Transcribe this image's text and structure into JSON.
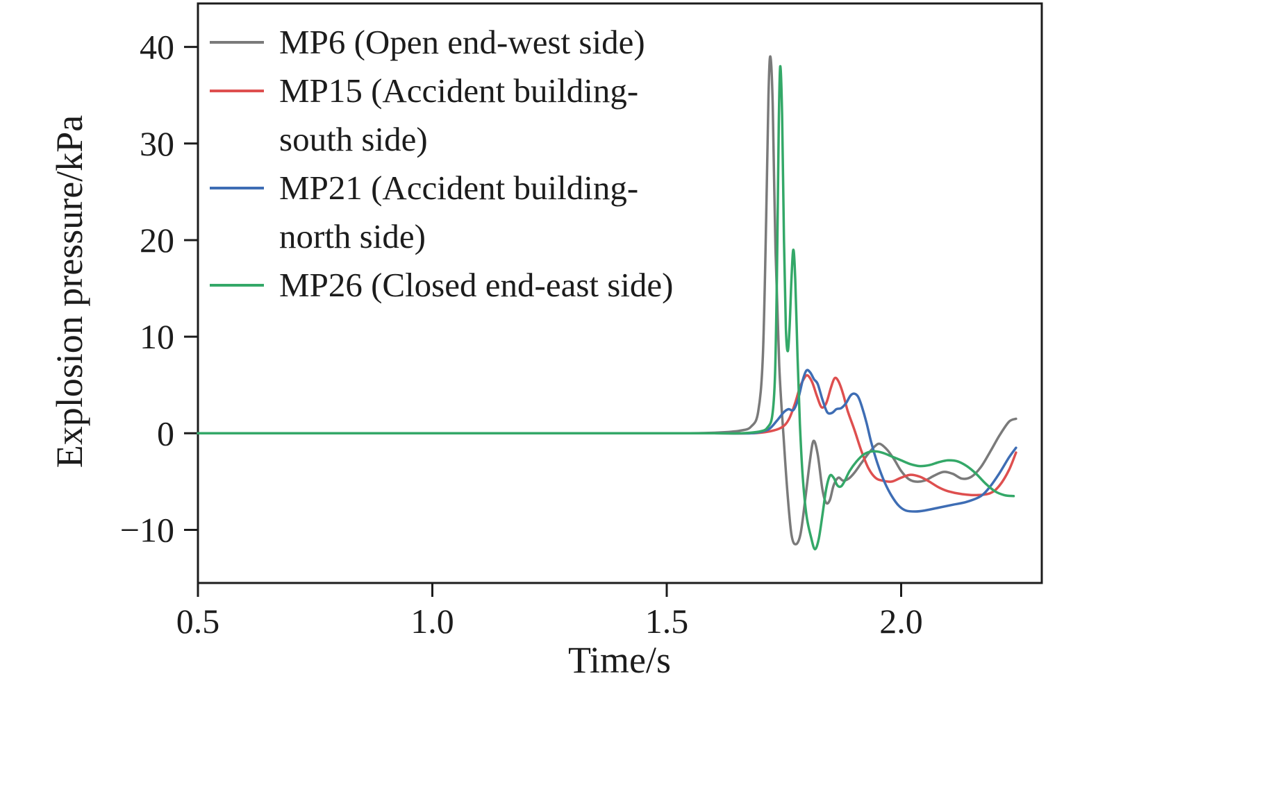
{
  "figure": {
    "background": "#ffffff",
    "frame_color": "#1c1c1c",
    "text_color": "#1c1c1c"
  },
  "chart_data": {
    "type": "line",
    "title": "",
    "xlabel": "Time/s",
    "ylabel": "Explosion pressure/kPa",
    "xlim": [
      0.5,
      2.3
    ],
    "ylim": [
      -15.5,
      44.5
    ],
    "xticks": [
      0.5,
      1.0,
      1.5,
      2.0
    ],
    "xtick_labels": [
      "0.5",
      "1.0",
      "1.5",
      "2.0"
    ],
    "yticks": [
      -10,
      0,
      10,
      20,
      30,
      40
    ],
    "ytick_labels": [
      "−10",
      "0",
      "10",
      "20",
      "30",
      "40"
    ],
    "grid": false,
    "legend_position": "top-left-inside",
    "series": [
      {
        "id": "mp6",
        "name": "MP6",
        "label": "MP6 (Open end-west side)",
        "label_lines": [
          "MP6 (Open end-west side)"
        ],
        "color": "#7a7a7a",
        "points": [
          [
            0.5,
            0
          ],
          [
            0.8,
            0
          ],
          [
            1.1,
            0
          ],
          [
            1.4,
            0
          ],
          [
            1.55,
            0
          ],
          [
            1.62,
            0.1
          ],
          [
            1.66,
            0.3
          ],
          [
            1.68,
            0.7
          ],
          [
            1.695,
            2.2
          ],
          [
            1.705,
            8
          ],
          [
            1.712,
            22
          ],
          [
            1.717,
            35
          ],
          [
            1.721,
            39
          ],
          [
            1.726,
            34
          ],
          [
            1.732,
            19
          ],
          [
            1.74,
            7
          ],
          [
            1.75,
            -1
          ],
          [
            1.758,
            -6.5
          ],
          [
            1.766,
            -10.5
          ],
          [
            1.775,
            -11.5
          ],
          [
            1.785,
            -10.5
          ],
          [
            1.795,
            -7
          ],
          [
            1.805,
            -3
          ],
          [
            1.813,
            -0.8
          ],
          [
            1.822,
            -2.2
          ],
          [
            1.832,
            -5.8
          ],
          [
            1.84,
            -7.2
          ],
          [
            1.848,
            -6.9
          ],
          [
            1.856,
            -5.4
          ],
          [
            1.866,
            -4.6
          ],
          [
            1.876,
            -4.9
          ],
          [
            1.888,
            -4.7
          ],
          [
            1.9,
            -4.1
          ],
          [
            1.915,
            -3.1
          ],
          [
            1.93,
            -2.1
          ],
          [
            1.945,
            -1.3
          ],
          [
            1.955,
            -1.1
          ],
          [
            1.97,
            -1.7
          ],
          [
            1.985,
            -2.7
          ],
          [
            2.0,
            -3.9
          ],
          [
            2.015,
            -4.7
          ],
          [
            2.03,
            -5.0
          ],
          [
            2.05,
            -4.9
          ],
          [
            2.07,
            -4.4
          ],
          [
            2.09,
            -4.0
          ],
          [
            2.11,
            -4.2
          ],
          [
            2.13,
            -4.7
          ],
          [
            2.15,
            -4.5
          ],
          [
            2.17,
            -3.5
          ],
          [
            2.19,
            -1.9
          ],
          [
            2.21,
            -0.2
          ],
          [
            2.23,
            1.2
          ],
          [
            2.245,
            1.5
          ]
        ]
      },
      {
        "id": "mp15",
        "name": "MP15",
        "label": "MP15 (Accident building-south side)",
        "label_lines": [
          "MP15 (Accident building-",
          "south side)"
        ],
        "color": "#de4f4f",
        "points": [
          [
            0.5,
            0
          ],
          [
            0.8,
            0
          ],
          [
            1.1,
            0
          ],
          [
            1.4,
            0
          ],
          [
            1.6,
            0
          ],
          [
            1.68,
            0
          ],
          [
            1.72,
            0.2
          ],
          [
            1.745,
            0.6
          ],
          [
            1.76,
            1.4
          ],
          [
            1.773,
            3.0
          ],
          [
            1.783,
            4.6
          ],
          [
            1.792,
            5.6
          ],
          [
            1.8,
            6.0
          ],
          [
            1.81,
            5.3
          ],
          [
            1.82,
            3.9
          ],
          [
            1.83,
            2.7
          ],
          [
            1.84,
            3.1
          ],
          [
            1.85,
            4.7
          ],
          [
            1.858,
            5.7
          ],
          [
            1.866,
            5.4
          ],
          [
            1.876,
            4.1
          ],
          [
            1.886,
            2.3
          ],
          [
            1.9,
            0.4
          ],
          [
            1.915,
            -1.8
          ],
          [
            1.93,
            -3.6
          ],
          [
            1.945,
            -4.6
          ],
          [
            1.96,
            -4.9
          ],
          [
            1.98,
            -5.0
          ],
          [
            2.0,
            -4.6
          ],
          [
            2.02,
            -4.3
          ],
          [
            2.04,
            -4.5
          ],
          [
            2.06,
            -5.0
          ],
          [
            2.08,
            -5.6
          ],
          [
            2.1,
            -6.0
          ],
          [
            2.13,
            -6.3
          ],
          [
            2.16,
            -6.4
          ],
          [
            2.19,
            -6.2
          ],
          [
            2.21,
            -5.4
          ],
          [
            2.23,
            -3.8
          ],
          [
            2.245,
            -2.0
          ]
        ]
      },
      {
        "id": "mp21",
        "name": "MP21",
        "label": "MP21 (Accident building-north side)",
        "label_lines": [
          "MP21 (Accident building-",
          "north side)"
        ],
        "color": "#3e6db4",
        "points": [
          [
            0.5,
            0
          ],
          [
            0.8,
            0
          ],
          [
            1.1,
            0
          ],
          [
            1.4,
            0
          ],
          [
            1.6,
            0
          ],
          [
            1.68,
            0
          ],
          [
            1.705,
            0.2
          ],
          [
            1.72,
            0.5
          ],
          [
            1.735,
            1.3
          ],
          [
            1.75,
            2.2
          ],
          [
            1.76,
            2.5
          ],
          [
            1.77,
            2.4
          ],
          [
            1.78,
            3.5
          ],
          [
            1.79,
            5.5
          ],
          [
            1.798,
            6.5
          ],
          [
            1.806,
            6.3
          ],
          [
            1.814,
            5.6
          ],
          [
            1.822,
            5.1
          ],
          [
            1.832,
            3.5
          ],
          [
            1.842,
            2.2
          ],
          [
            1.852,
            2.1
          ],
          [
            1.862,
            2.5
          ],
          [
            1.872,
            2.6
          ],
          [
            1.882,
            3.1
          ],
          [
            1.892,
            3.9
          ],
          [
            1.9,
            4.1
          ],
          [
            1.908,
            3.8
          ],
          [
            1.916,
            2.8
          ],
          [
            1.926,
            1.1
          ],
          [
            1.936,
            -0.9
          ],
          [
            1.95,
            -3.2
          ],
          [
            1.965,
            -5.1
          ],
          [
            1.98,
            -6.5
          ],
          [
            1.995,
            -7.5
          ],
          [
            2.01,
            -8.0
          ],
          [
            2.03,
            -8.1
          ],
          [
            2.05,
            -8.0
          ],
          [
            2.08,
            -7.7
          ],
          [
            2.11,
            -7.4
          ],
          [
            2.14,
            -7.1
          ],
          [
            2.17,
            -6.5
          ],
          [
            2.19,
            -5.5
          ],
          [
            2.21,
            -4.1
          ],
          [
            2.23,
            -2.5
          ],
          [
            2.245,
            -1.5
          ]
        ]
      },
      {
        "id": "mp26",
        "name": "MP26",
        "label": "MP26 (Closed end-east side)",
        "label_lines": [
          "MP26 (Closed end-east side)"
        ],
        "color": "#34a868",
        "points": [
          [
            0.5,
            0
          ],
          [
            0.8,
            0
          ],
          [
            1.1,
            0
          ],
          [
            1.4,
            0
          ],
          [
            1.6,
            0
          ],
          [
            1.66,
            0
          ],
          [
            1.7,
            0.2
          ],
          [
            1.715,
            0.6
          ],
          [
            1.725,
            1.8
          ],
          [
            1.731,
            6
          ],
          [
            1.735,
            16
          ],
          [
            1.739,
            32
          ],
          [
            1.742,
            38
          ],
          [
            1.746,
            33
          ],
          [
            1.75,
            20
          ],
          [
            1.754,
            11
          ],
          [
            1.758,
            8.5
          ],
          [
            1.762,
            11
          ],
          [
            1.766,
            16
          ],
          [
            1.77,
            19
          ],
          [
            1.774,
            16
          ],
          [
            1.779,
            8
          ],
          [
            1.784,
            1
          ],
          [
            1.79,
            -4.5
          ],
          [
            1.798,
            -8.5
          ],
          [
            1.808,
            -10.8
          ],
          [
            1.816,
            -12
          ],
          [
            1.824,
            -11
          ],
          [
            1.832,
            -8.5
          ],
          [
            1.84,
            -5.8
          ],
          [
            1.848,
            -4.4
          ],
          [
            1.856,
            -4.6
          ],
          [
            1.864,
            -5.4
          ],
          [
            1.872,
            -5.5
          ],
          [
            1.88,
            -4.9
          ],
          [
            1.89,
            -3.9
          ],
          [
            1.905,
            -2.9
          ],
          [
            1.92,
            -2.2
          ],
          [
            1.935,
            -1.9
          ],
          [
            1.95,
            -1.9
          ],
          [
            1.965,
            -2.1
          ],
          [
            1.98,
            -2.4
          ],
          [
            2.0,
            -2.8
          ],
          [
            2.02,
            -3.2
          ],
          [
            2.04,
            -3.4
          ],
          [
            2.06,
            -3.3
          ],
          [
            2.08,
            -3.0
          ],
          [
            2.1,
            -2.8
          ],
          [
            2.12,
            -2.9
          ],
          [
            2.14,
            -3.4
          ],
          [
            2.16,
            -4.2
          ],
          [
            2.18,
            -5.2
          ],
          [
            2.2,
            -6.0
          ],
          [
            2.22,
            -6.4
          ],
          [
            2.24,
            -6.5
          ]
        ]
      }
    ]
  }
}
